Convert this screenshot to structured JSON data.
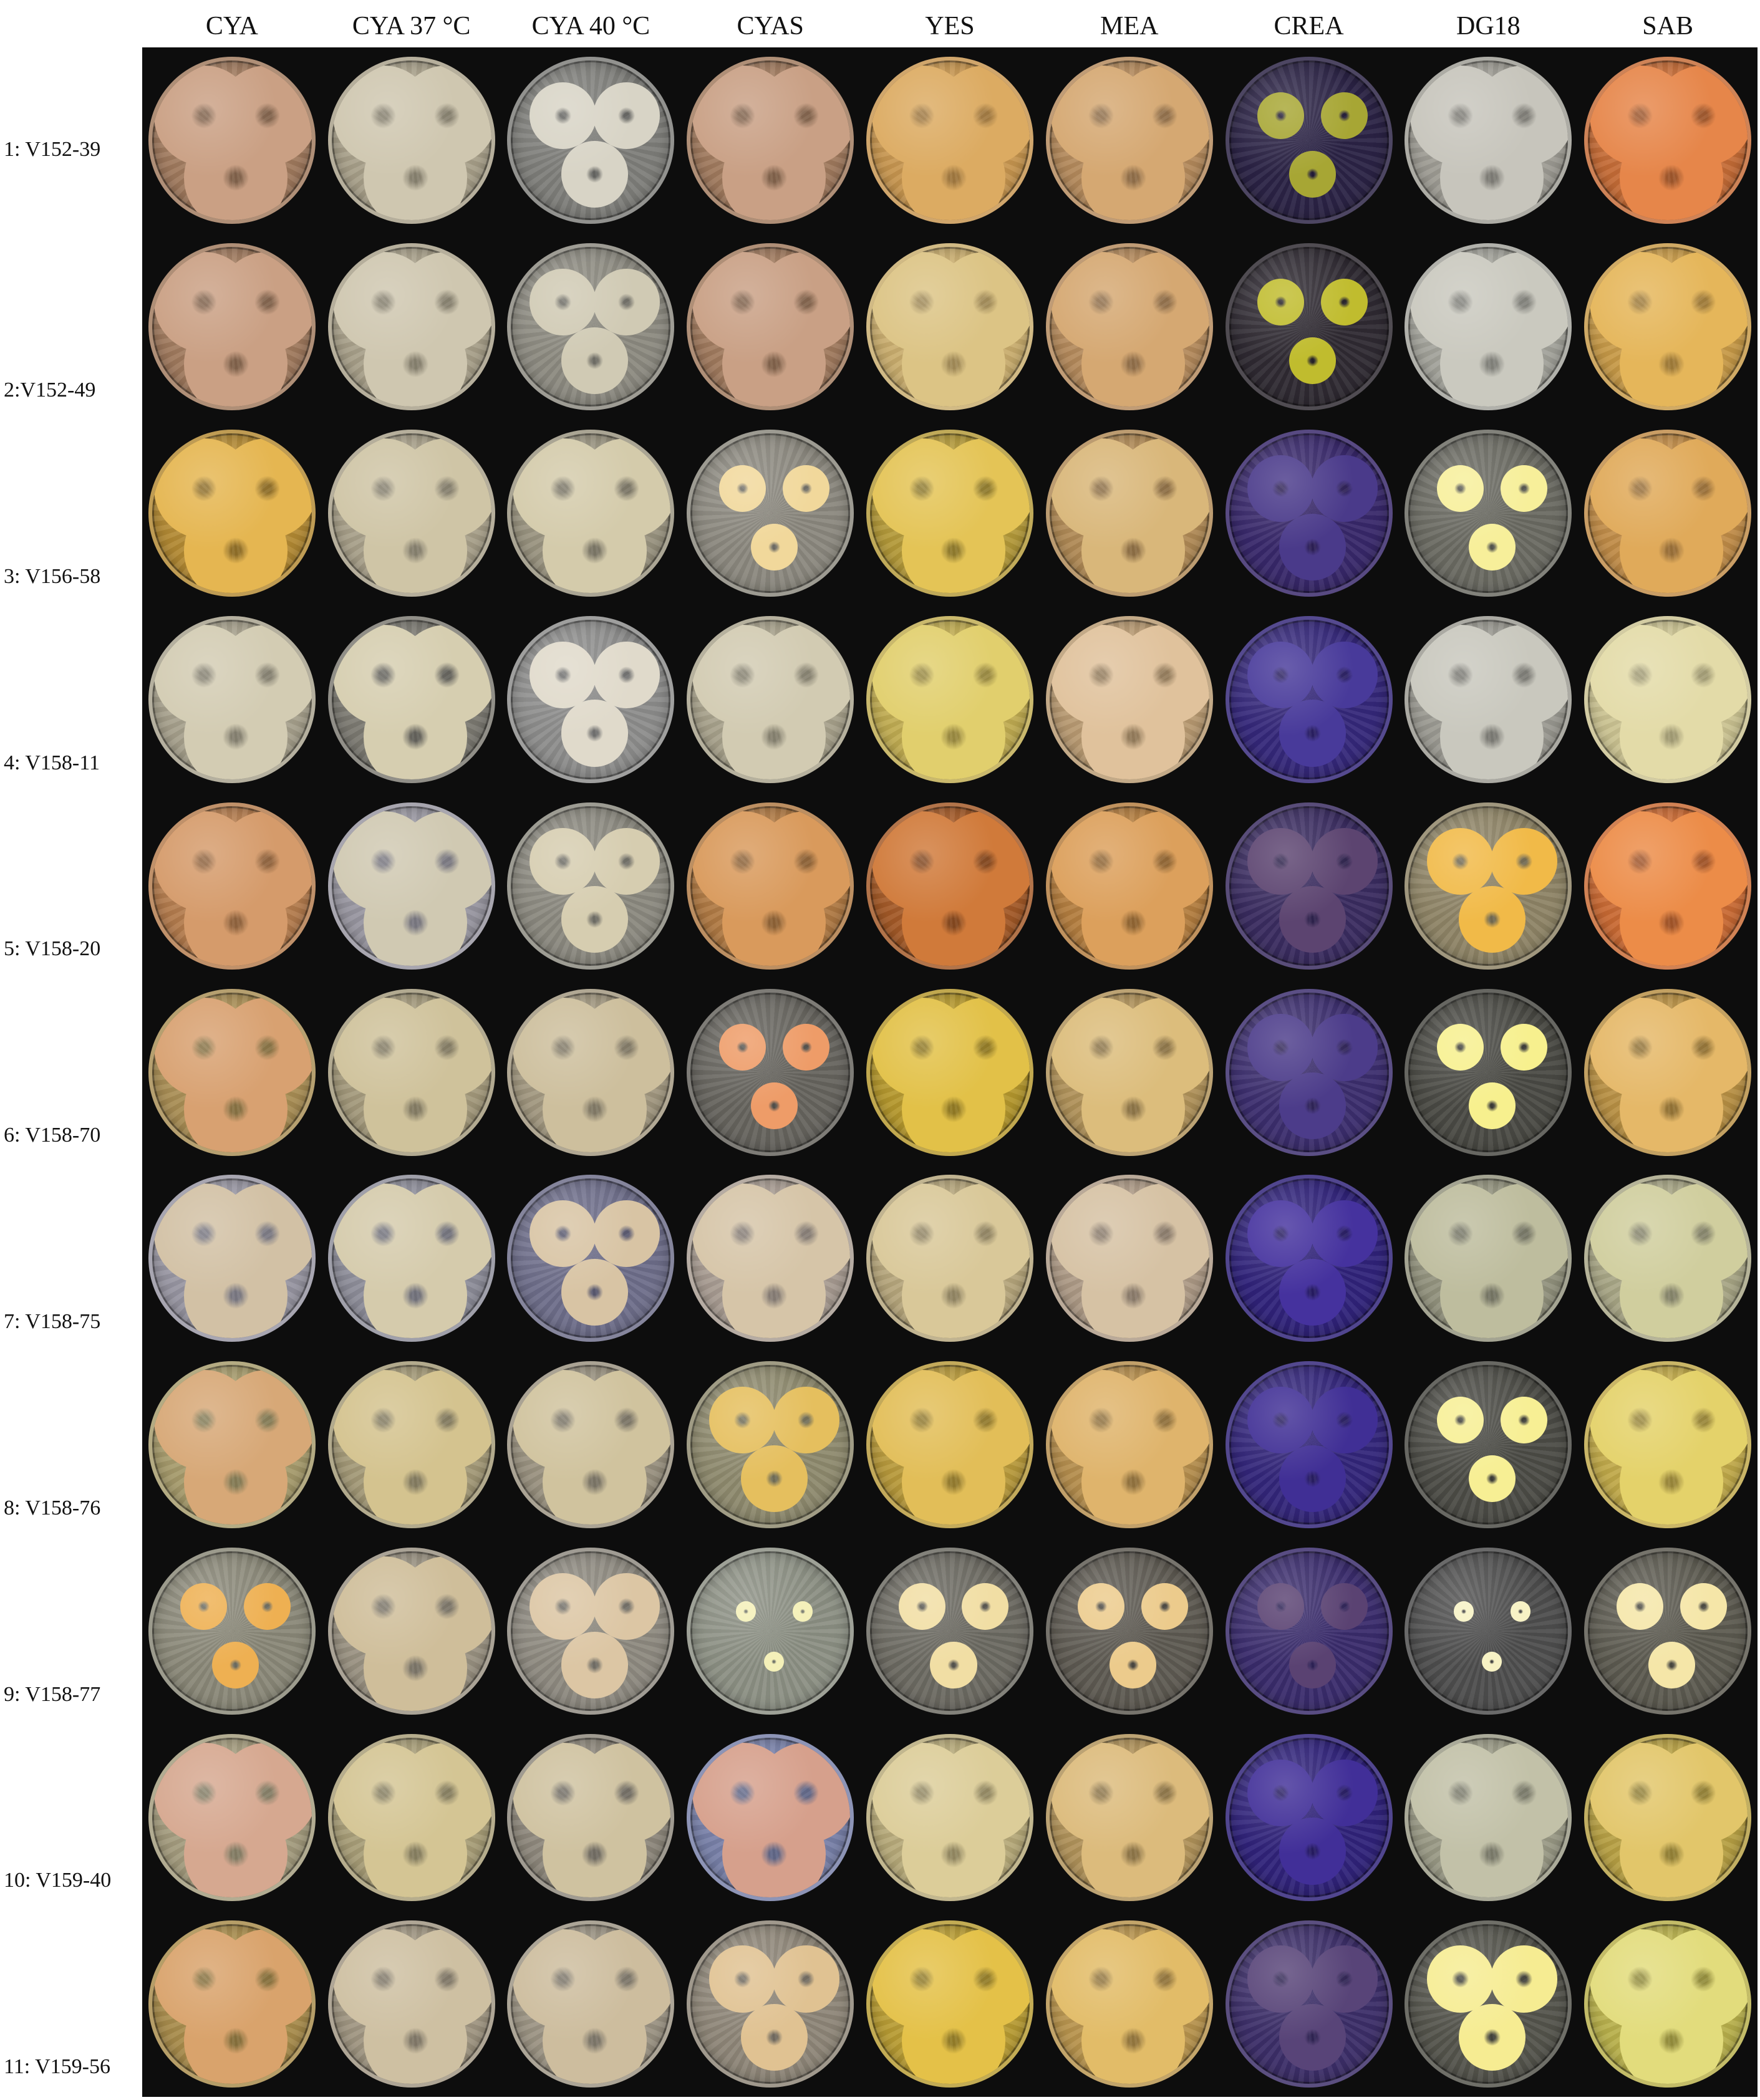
{
  "column_labels": [
    "CYA",
    "CYA  37 °C",
    "CYA 40 °C",
    "CYAS",
    "YES",
    "MEA",
    "CREA",
    "DG18",
    "SAB"
  ],
  "rows": [
    {
      "label": "1: V152-39",
      "plates": [
        {
          "agar": "#a07a5e",
          "colony": "#caa084",
          "size": "full"
        },
        {
          "agar": "#a8a08a",
          "colony": "#cfc7b0",
          "size": "full"
        },
        {
          "agar": "#7e7e7a",
          "colony": "#d8d4c6",
          "size": "medium"
        },
        {
          "agar": "#a07a5e",
          "colony": "#c9a085",
          "size": "full"
        },
        {
          "agar": "#c79650",
          "colony": "#dcab62",
          "size": "full"
        },
        {
          "agar": "#b48a5c",
          "colony": "#d5a872",
          "size": "full"
        },
        {
          "agar": "#2b2345",
          "colony": "#a7a634",
          "size": "small"
        },
        {
          "agar": "#9e9c94",
          "colony": "#c7c5bc",
          "size": "full"
        },
        {
          "agar": "#c56c37",
          "colony": "#e6864a",
          "size": "full"
        }
      ]
    },
    {
      "label": "2:V152-49",
      "plates": [
        {
          "agar": "#a07a5e",
          "colony": "#caa084",
          "size": "full"
        },
        {
          "agar": "#a8a08a",
          "colony": "#cfc7b0",
          "size": "full"
        },
        {
          "agar": "#8c8a80",
          "colony": "#d0cab4",
          "size": "medium"
        },
        {
          "agar": "#a07a5e",
          "colony": "#c9a085",
          "size": "full"
        },
        {
          "agar": "#c9ad6e",
          "colony": "#dcc485",
          "size": "full"
        },
        {
          "agar": "#b48a5c",
          "colony": "#d5a872",
          "size": "full"
        },
        {
          "agar": "#2f2a32",
          "colony": "#c0bc2e",
          "size": "small"
        },
        {
          "agar": "#a3a39b",
          "colony": "#cac9bf",
          "size": "full"
        },
        {
          "agar": "#c79a48",
          "colony": "#e5b65a",
          "size": "full"
        }
      ]
    },
    {
      "label": "3: V156-58",
      "plates": [
        {
          "agar": "#b38a34",
          "colony": "#e5b651",
          "size": "full"
        },
        {
          "agar": "#a8a08a",
          "colony": "#cfc5a6",
          "size": "full"
        },
        {
          "agar": "#9a9480",
          "colony": "#d4cbab",
          "size": "full"
        },
        {
          "agar": "#8b887e",
          "colony": "#f1d89b",
          "size": "small"
        },
        {
          "agar": "#b49a3a",
          "colony": "#e4c456",
          "size": "full"
        },
        {
          "agar": "#b08a56",
          "colony": "#d9b77a",
          "size": "full"
        },
        {
          "agar": "#38286a",
          "colony": "#4a3a8a",
          "size": "medium"
        },
        {
          "agar": "#6a6a62",
          "colony": "#f7ef9a",
          "size": "small"
        },
        {
          "agar": "#c08c48",
          "colony": "#e0aa5a",
          "size": "full"
        }
      ]
    },
    {
      "label": "4: V158-11",
      "plates": [
        {
          "agar": "#a7a18d",
          "colony": "#d3ccb3",
          "size": "full"
        },
        {
          "agar": "#7c7a72",
          "colony": "#d6ceb0",
          "size": "full"
        },
        {
          "agar": "#8d8d8c",
          "colony": "#e0dacb",
          "size": "medium"
        },
        {
          "agar": "#a8a28c",
          "colony": "#d2cbb2",
          "size": "full"
        },
        {
          "agar": "#c0ac52",
          "colony": "#e1cf6d",
          "size": "full"
        },
        {
          "agar": "#b89a72",
          "colony": "#e0c29c",
          "size": "full"
        },
        {
          "agar": "#35287a",
          "colony": "#483a9a",
          "size": "medium"
        },
        {
          "agar": "#9b9a92",
          "colony": "#c9c8be",
          "size": "full"
        },
        {
          "agar": "#cbc392",
          "colony": "#e3dba8",
          "size": "full"
        }
      ]
    },
    {
      "label": "5: V158-20",
      "plates": [
        {
          "agar": "#b47c4e",
          "colony": "#d59b6b",
          "size": "full"
        },
        {
          "agar": "#9896a0",
          "colony": "#d0c9b2",
          "size": "full"
        },
        {
          "agar": "#8b897f",
          "colony": "#d6cdb0",
          "size": "medium"
        },
        {
          "agar": "#b07a44",
          "colony": "#d99a5c",
          "size": "full"
        },
        {
          "agar": "#a45a28",
          "colony": "#d07a3a",
          "size": "full"
        },
        {
          "agar": "#b47e40",
          "colony": "#dca05c",
          "size": "full"
        },
        {
          "agar": "#3a2c60",
          "colony": "#5c4470",
          "size": "medium"
        },
        {
          "agar": "#8e8466",
          "colony": "#f1ba48",
          "size": "medium"
        },
        {
          "agar": "#c96a34",
          "colony": "#ec8c48",
          "size": "full"
        }
      ]
    },
    {
      "label": "6: V158-70",
      "plates": [
        {
          "agar": "#a98e55",
          "colony": "#d8a171",
          "size": "full"
        },
        {
          "agar": "#a49a7c",
          "colony": "#cfc29b",
          "size": "full"
        },
        {
          "agar": "#a29880",
          "colony": "#cdbf9d",
          "size": "full"
        },
        {
          "agar": "#66645e",
          "colony": "#ee9c68",
          "size": "small"
        },
        {
          "agar": "#b5982e",
          "colony": "#e2c148",
          "size": "full"
        },
        {
          "agar": "#b0925a",
          "colony": "#dcbd7c",
          "size": "full"
        },
        {
          "agar": "#3c2e6e",
          "colony": "#4c3c8a",
          "size": "medium"
        },
        {
          "agar": "#4a4a44",
          "colony": "#f7f08e",
          "size": "small"
        },
        {
          "agar": "#b89044",
          "colony": "#e5b868",
          "size": "full"
        }
      ]
    },
    {
      "label": "7: V158-75",
      "plates": [
        {
          "agar": "#9896a2",
          "colony": "#d2c1a5",
          "size": "full"
        },
        {
          "agar": "#8e8e9a",
          "colony": "#d5cbac",
          "size": "full"
        },
        {
          "agar": "#6e6e8a",
          "colony": "#d8c4a4",
          "size": "medium"
        },
        {
          "agar": "#a89c92",
          "colony": "#d6c5a8",
          "size": "full"
        },
        {
          "agar": "#b6a67c",
          "colony": "#d9c899",
          "size": "full"
        },
        {
          "agar": "#ad9a86",
          "colony": "#d6c2a4",
          "size": "full"
        },
        {
          "agar": "#30237a",
          "colony": "#45329e",
          "size": "medium"
        },
        {
          "agar": "#93937e",
          "colony": "#bebd9e",
          "size": "full"
        },
        {
          "agar": "#a8a686",
          "colony": "#d0ce9e",
          "size": "full"
        }
      ]
    },
    {
      "label": "8: V158-76",
      "plates": [
        {
          "agar": "#a69b6c",
          "colony": "#d7a877",
          "size": "full"
        },
        {
          "agar": "#a49a78",
          "colony": "#d4c38f",
          "size": "full"
        },
        {
          "agar": "#9a9280",
          "colony": "#d0c39e",
          "size": "full"
        },
        {
          "agar": "#8e8a6e",
          "colony": "#e5bf5e",
          "size": "medium"
        },
        {
          "agar": "#b89a3c",
          "colony": "#e2be58",
          "size": "full"
        },
        {
          "agar": "#b58e4e",
          "colony": "#dfb46c",
          "size": "full"
        },
        {
          "agar": "#33267a",
          "colony": "#402f95",
          "size": "medium"
        },
        {
          "agar": "#4c4c46",
          "colony": "#f7ef94",
          "size": "small"
        },
        {
          "agar": "#c0a94a",
          "colony": "#e4d26a",
          "size": "full"
        }
      ]
    },
    {
      "label": "9: V158-77",
      "plates": [
        {
          "agar": "#8a8878",
          "colony": "#eeb052",
          "size": "small"
        },
        {
          "agar": "#9a9282",
          "colony": "#cfbe9a",
          "size": "full"
        },
        {
          "agar": "#8e8a80",
          "colony": "#dcc6a4",
          "size": "medium"
        },
        {
          "agar": "#8c9084",
          "colony": "#f4f0b8",
          "size": "tiny"
        },
        {
          "agar": "#6c6a62",
          "colony": "#f1dea4",
          "size": "small"
        },
        {
          "agar": "#5e5a52",
          "colony": "#eccb8c",
          "size": "small"
        },
        {
          "agar": "#3a2c6c",
          "colony": "#5a4272",
          "size": "small"
        },
        {
          "agar": "#4e4e4e",
          "colony": "#f7f2c4",
          "size": "tiny"
        },
        {
          "agar": "#5c5a50",
          "colony": "#f5e6a8",
          "size": "small"
        }
      ]
    },
    {
      "label": "10: V159-40",
      "plates": [
        {
          "agar": "#a49c7e",
          "colony": "#d6a890",
          "size": "full"
        },
        {
          "agar": "#a89e78",
          "colony": "#d4c594",
          "size": "full"
        },
        {
          "agar": "#8e887c",
          "colony": "#cfc2a0",
          "size": "full"
        },
        {
          "agar": "#7880a8",
          "colony": "#d6a08c",
          "size": "full"
        },
        {
          "agar": "#b7aa7a",
          "colony": "#dccd99",
          "size": "full"
        },
        {
          "agar": "#b0925a",
          "colony": "#dcbb7c",
          "size": "full"
        },
        {
          "agar": "#30237a",
          "colony": "#412f98",
          "size": "medium"
        },
        {
          "agar": "#9a9a86",
          "colony": "#c2c1a8",
          "size": "full"
        },
        {
          "agar": "#b7a044",
          "colony": "#e2c66a",
          "size": "full"
        }
      ]
    },
    {
      "label": "11: V159-56",
      "plates": [
        {
          "agar": "#a88c4c",
          "colony": "#d9a36c",
          "size": "full"
        },
        {
          "agar": "#a09682",
          "colony": "#cec0a2",
          "size": "full"
        },
        {
          "agar": "#9c9484",
          "colony": "#cdbd9e",
          "size": "full"
        },
        {
          "agar": "#8e8678",
          "colony": "#e0c292",
          "size": "medium"
        },
        {
          "agar": "#b89c34",
          "colony": "#e4c148",
          "size": "full"
        },
        {
          "agar": "#b8944e",
          "colony": "#e2bc68",
          "size": "full"
        },
        {
          "agar": "#3c2e68",
          "colony": "#584478",
          "size": "medium"
        },
        {
          "agar": "#54544c",
          "colony": "#f6ec92",
          "size": "medium"
        },
        {
          "agar": "#b8b04c",
          "colony": "#e2dc7c",
          "size": "full"
        }
      ]
    }
  ]
}
